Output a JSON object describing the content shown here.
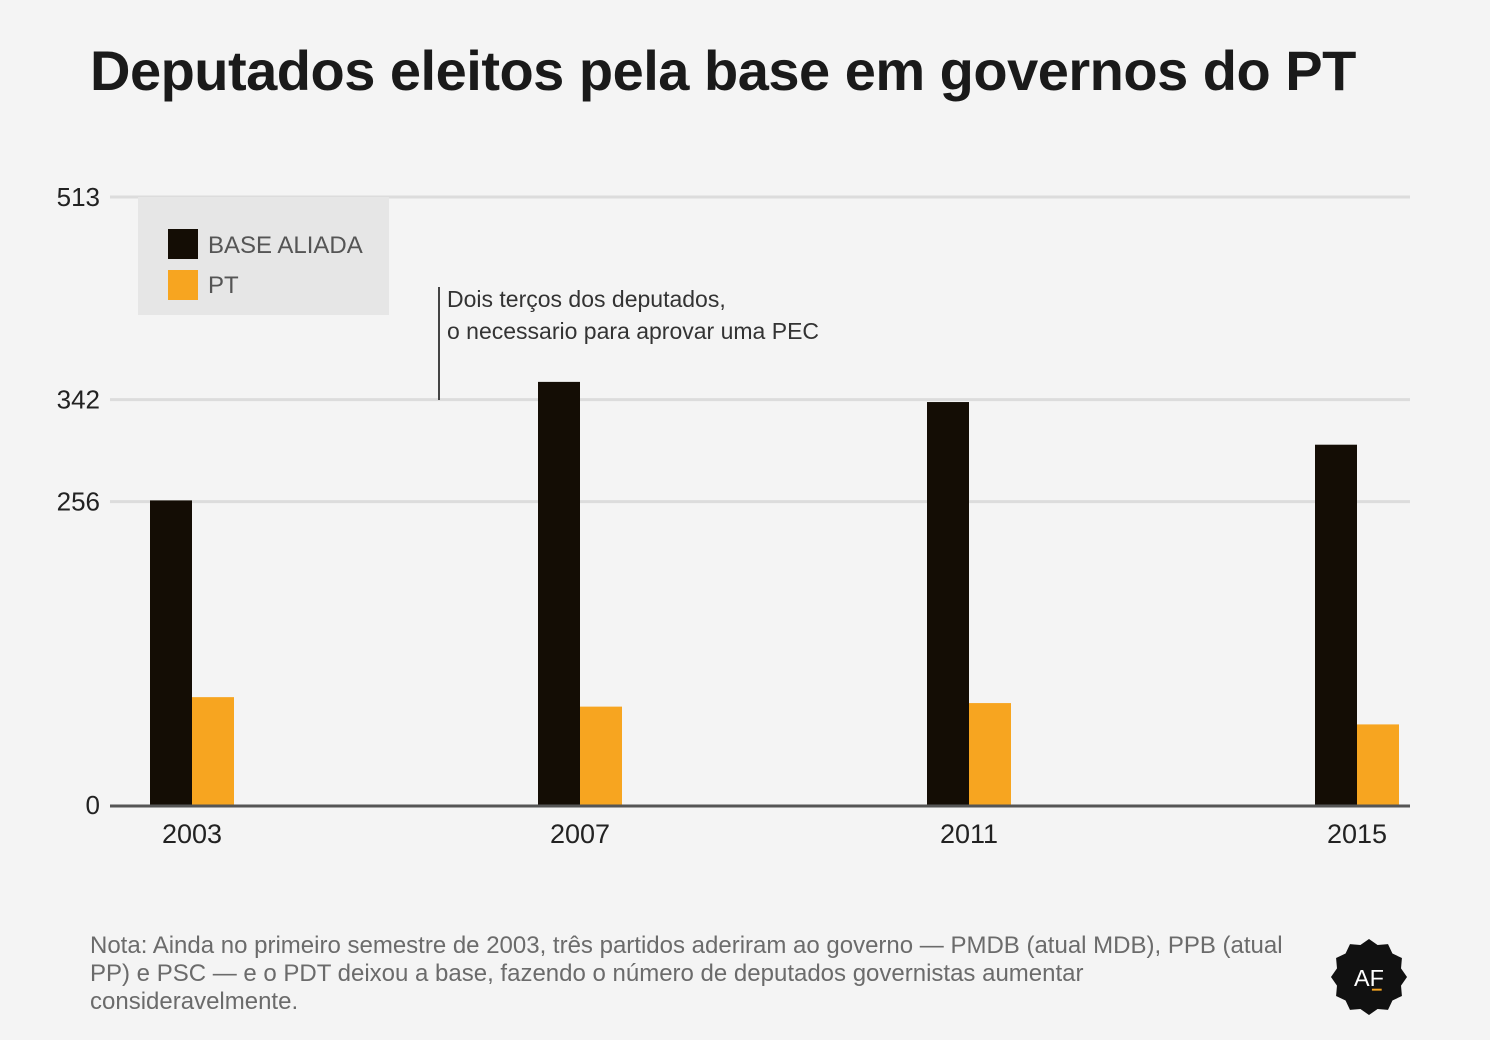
{
  "title": "Deputados eleitos pela base em governos do PT",
  "note": "Nota: Ainda no primeiro semestre de 2003, três partidos aderiram ao governo — PMDB (atual MDB), PPB (atual PP) e PSC — e o PDT deixou a base, fazendo o número de deputados governistas aumentar consideravelmente.",
  "annotation": {
    "line1": "Dois terços dos deputados,",
    "line2": "o necessario para aprovar uma PEC"
  },
  "logo": {
    "text": "AF",
    "icon": "af-badge-logo"
  },
  "colors": {
    "base": "#140d05",
    "pt": "#f7a520",
    "grid": "#dcdcdc",
    "axis": "#555555"
  },
  "chart_data": {
    "type": "bar",
    "categories": [
      "2003",
      "2007",
      "2011",
      "2015"
    ],
    "series": [
      {
        "name": "BASE ALIADA",
        "values": [
          257,
          357,
          340,
          304
        ]
      },
      {
        "name": "PT",
        "values": [
          91,
          83,
          86,
          68
        ]
      }
    ],
    "yticks": [
      0,
      256,
      342,
      513
    ],
    "ylim": [
      0,
      513
    ],
    "grid": true,
    "legend": "top-left",
    "reference_line": 342
  }
}
